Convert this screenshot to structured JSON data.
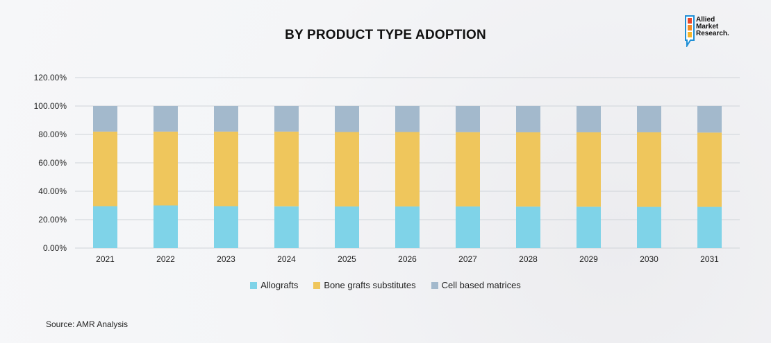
{
  "colors": {
    "allografts": "#7fd3e8",
    "bone_grafts": "#efc65c",
    "cell_matrices": "#a3b9cc",
    "grid": "#cfd4d9"
  },
  "logo": {
    "line1": "Allied",
    "line2": "Market",
    "line3": "Research."
  },
  "source": "Source: AMR Analysis",
  "chart_data": {
    "type": "bar",
    "stacked": true,
    "title": "BY PRODUCT TYPE ADOPTION",
    "xlabel": "",
    "ylabel": "",
    "ylim": [
      0,
      120
    ],
    "yticks": [
      "0.00%",
      "20.00%",
      "40.00%",
      "60.00%",
      "80.00%",
      "100.00%",
      "120.00%"
    ],
    "categories": [
      "2021",
      "2022",
      "2023",
      "2024",
      "2025",
      "2026",
      "2027",
      "2028",
      "2029",
      "2030",
      "2031"
    ],
    "series": [
      {
        "name": "Allografts",
        "values": [
          29.5,
          30.0,
          29.5,
          29.4,
          29.3,
          29.3,
          29.3,
          29.2,
          29.1,
          29.0,
          29.0
        ]
      },
      {
        "name": "Bone grafts substitutes",
        "values": [
          52.5,
          52.0,
          52.5,
          52.6,
          52.4,
          52.4,
          52.3,
          52.3,
          52.4,
          52.5,
          52.3
        ]
      },
      {
        "name": "Cell based matrices",
        "values": [
          18.0,
          18.0,
          18.0,
          18.0,
          18.3,
          18.3,
          18.4,
          18.5,
          18.5,
          18.5,
          18.7
        ]
      }
    ],
    "legend": "bottom"
  }
}
